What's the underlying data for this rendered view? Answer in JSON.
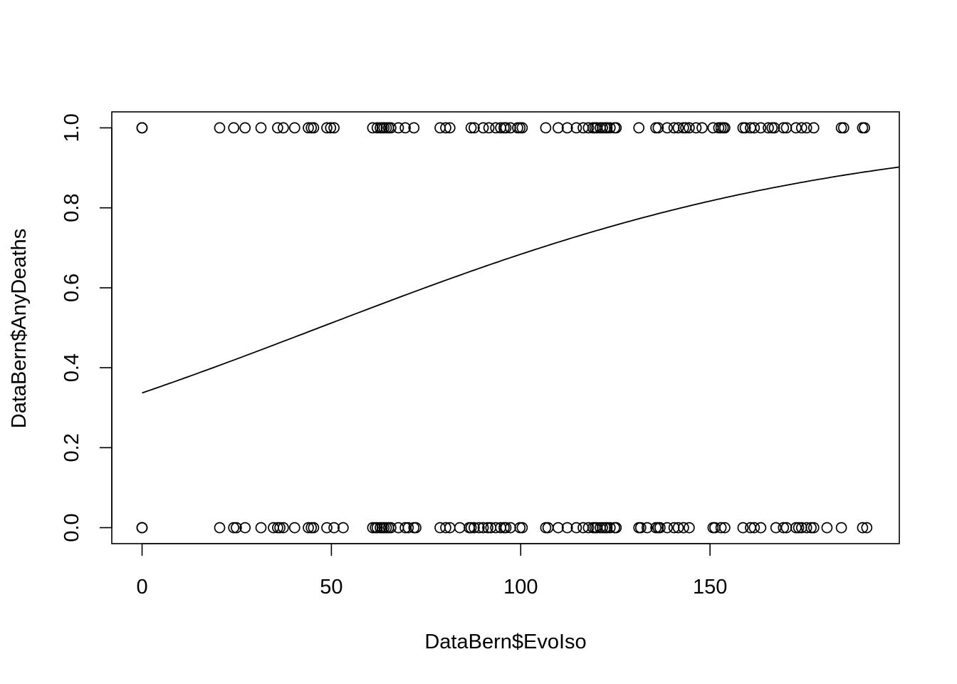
{
  "chart_data": {
    "type": "scatter",
    "xlabel": "DataBern$EvoIso",
    "ylabel": "DataBern$AnyDeaths",
    "xlim": [
      -8,
      200
    ],
    "ylim": [
      -0.04,
      1.04
    ],
    "x_ticks": [
      0,
      50,
      100,
      150
    ],
    "x_tick_labels": [
      "0",
      "50",
      "100",
      "150"
    ],
    "y_ticks": [
      0.0,
      0.2,
      0.4,
      0.6,
      0.8,
      1.0
    ],
    "y_tick_labels": [
      "0.0",
      "0.2",
      "0.4",
      "0.6",
      "0.8",
      "1.0"
    ],
    "grid": false,
    "marker": "open-circle",
    "point_color": "#000000",
    "series": [
      {
        "y": 1,
        "x": [
          0,
          0,
          0,
          20.5,
          24.2,
          27.2,
          31.4,
          35.8,
          37.3,
          40.3,
          43.9,
          44.7,
          45.3,
          48.8,
          49.8,
          50.7,
          60.9,
          62.1,
          62.9,
          63.4,
          63.9,
          64.5,
          65.1,
          65.7,
          67.7,
          69.5,
          71.8,
          78.7,
          80.2,
          81.3,
          86.9,
          87.7,
          90.1,
          91.6,
          93.4,
          94.7,
          95.6,
          96.1,
          97.3,
          99.2,
          99.8,
          100.4,
          106.6,
          109.9,
          112.3,
          114.7,
          116.5,
          117.9,
          119.1,
          119.6,
          120.1,
          121.0,
          121.6,
          122.3,
          122.8,
          123.6,
          124.8,
          125.2,
          131.2,
          135.7,
          136.3,
          138.7,
          140.5,
          141.6,
          143.0,
          143.6,
          144.5,
          146.3,
          147.9,
          150.8,
          152.3,
          152.9,
          153.5,
          153.9,
          158.7,
          159.3,
          160.7,
          161.7,
          163.4,
          165.4,
          166.4,
          167.0,
          169.4,
          170.2,
          172.7,
          174.2,
          175.5,
          177.4,
          184.7,
          185.3,
          190.3,
          190.8
        ]
      },
      {
        "y": 0,
        "x": [
          0,
          0,
          0,
          20.5,
          24.2,
          24.9,
          27.2,
          31.4,
          34.7,
          35.8,
          36.4,
          37.3,
          40.3,
          43.9,
          44.7,
          45.3,
          48.8,
          50.7,
          53.1,
          60.9,
          61.6,
          62.1,
          62.9,
          63.4,
          63.9,
          64.5,
          65.1,
          65.7,
          67.7,
          69.5,
          70.3,
          71.8,
          72.3,
          78.7,
          80.2,
          81.3,
          83.9,
          86.4,
          86.9,
          87.7,
          89.0,
          90.1,
          91.3,
          92.1,
          93.4,
          94.7,
          95.6,
          96.1,
          97.3,
          99.8,
          100.4,
          106.6,
          107.2,
          109.9,
          112.3,
          114.7,
          116.5,
          117.9,
          119.1,
          119.6,
          120.1,
          121.0,
          121.6,
          122.3,
          122.8,
          123.6,
          124.8,
          125.2,
          131.2,
          131.7,
          133.4,
          135.7,
          136.3,
          136.8,
          138.7,
          140.5,
          141.6,
          143.0,
          144.5,
          150.8,
          151.3,
          152.9,
          153.9,
          158.7,
          160.7,
          161.7,
          163.4,
          167.4,
          169.4,
          170.2,
          172.7,
          173.4,
          174.2,
          175.5,
          176.7,
          177.4,
          180.9,
          184.7,
          190.3,
          191.4
        ]
      }
    ],
    "fitted_curve": {
      "type": "line",
      "x": [
        0,
        20,
        40,
        60,
        80,
        100,
        120,
        140,
        160,
        180,
        200
      ],
      "y": [
        0.337,
        0.406,
        0.48,
        0.555,
        0.626,
        0.692,
        0.751,
        0.801,
        0.843,
        0.877,
        0.902
      ]
    }
  }
}
